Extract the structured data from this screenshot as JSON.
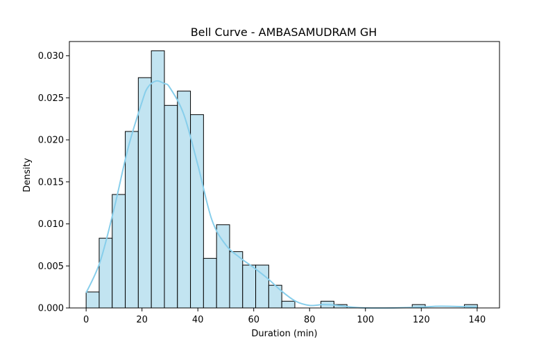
{
  "chart_data": {
    "type": "histogram",
    "title": "Bell Curve - AMBASAMUDRAM GH",
    "xlabel": "Duration (min)",
    "ylabel": "Density",
    "xlim": [
      -6,
      148
    ],
    "ylim": [
      0,
      0.0317
    ],
    "x_ticks": [
      0,
      20,
      40,
      60,
      80,
      100,
      120,
      140
    ],
    "y_ticks": [
      0.0,
      0.005,
      0.01,
      0.015,
      0.02,
      0.025,
      0.03
    ],
    "y_tick_labels": [
      "0.000",
      "0.005",
      "0.010",
      "0.015",
      "0.020",
      "0.025",
      "0.030"
    ],
    "bin_width": 4.67,
    "bin_start": 0,
    "bin_densities": [
      0.0019,
      0.0083,
      0.0135,
      0.021,
      0.0274,
      0.0306,
      0.0241,
      0.0258,
      0.023,
      0.0059,
      0.0099,
      0.0067,
      0.0051,
      0.0051,
      0.0027,
      0.0008,
      0.0,
      0.0,
      0.0008,
      0.0004,
      0.0,
      0.0,
      0.0,
      0.0,
      0.0,
      0.0004,
      0.0,
      0.0,
      0.0,
      0.0004
    ],
    "kde": {
      "x": [
        0,
        5,
        10,
        15,
        20,
        22,
        25,
        28,
        30,
        35,
        40,
        45,
        50,
        55,
        60,
        65,
        70,
        75,
        80,
        85,
        90,
        95,
        100,
        110,
        120,
        125,
        130,
        140
      ],
      "y": [
        0.0018,
        0.0055,
        0.0118,
        0.019,
        0.0245,
        0.0262,
        0.027,
        0.0267,
        0.0262,
        0.023,
        0.017,
        0.0105,
        0.0075,
        0.006,
        0.0048,
        0.0035,
        0.002,
        0.0008,
        0.0003,
        0.0004,
        0.0003,
        0.0001,
        0.0,
        0.0,
        0.0001,
        0.0002,
        0.0002,
        0.0001
      ]
    },
    "grid": false,
    "colors": {
      "bar_fill": "#c2e4f1",
      "bar_edge": "#000000",
      "kde_line": "#87ceeb",
      "axes": "#000000"
    }
  }
}
